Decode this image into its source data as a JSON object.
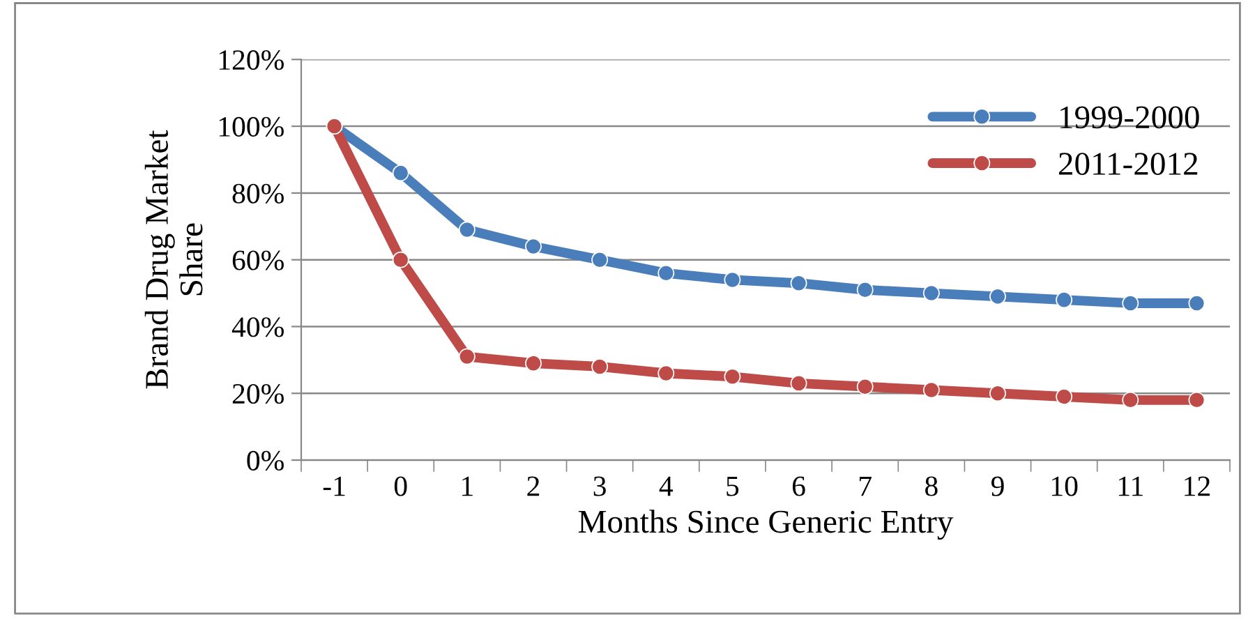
{
  "chart_data": {
    "type": "line",
    "xlabel": "Months Since Generic Entry",
    "ylabel": "Brand Drug Market\nShare",
    "categories": [
      "-1",
      "0",
      "1",
      "2",
      "3",
      "4",
      "5",
      "6",
      "7",
      "8",
      "9",
      "10",
      "11",
      "12"
    ],
    "series": [
      {
        "name": "1999-2000",
        "color": "#4a7ebb",
        "values": [
          100,
          86,
          69,
          64,
          60,
          56,
          54,
          53,
          51,
          50,
          49,
          48,
          47,
          47
        ]
      },
      {
        "name": "2011-2012",
        "color": "#be4b48",
        "values": [
          100,
          60,
          31,
          29,
          28,
          26,
          25,
          23,
          22,
          21,
          20,
          19,
          18,
          18
        ]
      }
    ],
    "ylim": [
      0,
      120
    ],
    "yticks": [
      {
        "value": 0,
        "label": "0%"
      },
      {
        "value": 20,
        "label": "20%"
      },
      {
        "value": 40,
        "label": "40%"
      },
      {
        "value": 60,
        "label": "60%"
      },
      {
        "value": 80,
        "label": "80%"
      },
      {
        "value": 100,
        "label": "100%"
      },
      {
        "value": 120,
        "label": "120%"
      }
    ],
    "grid": "y",
    "legend": "top right",
    "marker": "circle",
    "line_style": "solid"
  }
}
